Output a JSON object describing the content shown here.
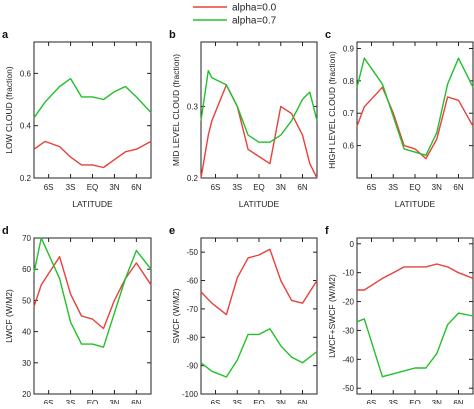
{
  "legend": {
    "items": [
      {
        "name": "alpha=0.0",
        "color": "#e8403a"
      },
      {
        "name": "alpha=0.7",
        "color": "#22c02a"
      }
    ]
  },
  "chart_data": [
    {
      "panel": "a",
      "type": "line",
      "xlabel": "LATITUDE",
      "ylabel": "LOW CLOUD (fraction)",
      "categories": [
        "6S",
        "3S",
        "EQ",
        "3N",
        "6N"
      ],
      "x": [
        -8,
        -6.5,
        -4.5,
        -3,
        -1.5,
        0,
        1.5,
        3,
        4.5,
        6,
        8
      ],
      "xlim": [
        -8,
        8
      ],
      "ylim": [
        0.2,
        0.72
      ],
      "yticks": [
        0.2,
        0.4,
        0.6
      ],
      "ytick_labels": [
        "0.2",
        "0.4",
        "0.6"
      ],
      "series": [
        {
          "name": "alpha=0.0",
          "values": [
            0.31,
            0.34,
            0.32,
            0.28,
            0.25,
            0.25,
            0.24,
            0.27,
            0.3,
            0.31,
            0.34
          ]
        },
        {
          "name": "alpha=0.7",
          "values": [
            0.43,
            0.49,
            0.55,
            0.58,
            0.51,
            0.51,
            0.5,
            0.53,
            0.55,
            0.51,
            0.45
          ]
        }
      ]
    },
    {
      "panel": "b",
      "type": "line",
      "xlabel": "LATITUDE",
      "ylabel": "MID LEVEL CLOUD (fraction)",
      "categories": [
        "6S",
        "3S",
        "EQ",
        "3N",
        "6N"
      ],
      "x": [
        -8,
        -7,
        -6.5,
        -4.5,
        -3,
        -1.5,
        0,
        1.5,
        3,
        4.5,
        6,
        7,
        8
      ],
      "xlim": [
        -8,
        8
      ],
      "ylim": [
        0.2,
        0.39
      ],
      "yticks": [
        0.2,
        0.3
      ],
      "ytick_labels": [
        "0.2",
        "0.3"
      ],
      "series": [
        {
          "name": "alpha=0.0",
          "values": [
            0.2,
            0.26,
            0.28,
            0.33,
            0.3,
            0.24,
            0.23,
            0.22,
            0.3,
            0.29,
            0.26,
            0.22,
            0.2
          ]
        },
        {
          "name": "alpha=0.7",
          "values": [
            0.28,
            0.35,
            0.34,
            0.33,
            0.3,
            0.26,
            0.25,
            0.25,
            0.26,
            0.28,
            0.31,
            0.32,
            0.28
          ]
        }
      ]
    },
    {
      "panel": "c",
      "type": "line",
      "xlabel": "LATITUDE",
      "ylabel": "HIGH LEVEL CLOUD (fraction)",
      "categories": [
        "6S",
        "3S",
        "EQ",
        "3N",
        "6N"
      ],
      "x": [
        -8,
        -7,
        -4.5,
        -3,
        -1.5,
        0,
        1.5,
        3,
        4.5,
        6,
        8
      ],
      "xlim": [
        -8,
        8
      ],
      "ylim": [
        0.5,
        0.92
      ],
      "yticks": [
        0.6,
        0.7,
        0.8,
        0.9
      ],
      "ytick_labels": [
        "0.6",
        "0.7",
        "0.8",
        "0.9"
      ],
      "series": [
        {
          "name": "alpha=0.0",
          "values": [
            0.66,
            0.72,
            0.78,
            0.7,
            0.6,
            0.59,
            0.56,
            0.62,
            0.75,
            0.74,
            0.66
          ]
        },
        {
          "name": "alpha=0.7",
          "values": [
            0.78,
            0.87,
            0.79,
            0.69,
            0.59,
            0.58,
            0.57,
            0.64,
            0.79,
            0.87,
            0.78
          ]
        }
      ]
    },
    {
      "panel": "d",
      "type": "line",
      "xlabel": "LATITUDE",
      "ylabel": "LWCF (W/M2)",
      "categories": [
        "6S",
        "3S",
        "EQ",
        "3N",
        "6N"
      ],
      "x": [
        -8,
        -7,
        -4.5,
        -3,
        -1.5,
        0,
        1.5,
        3,
        4.5,
        6,
        8
      ],
      "xlim": [
        -8,
        8
      ],
      "ylim": [
        20,
        70
      ],
      "yticks": [
        20,
        30,
        40,
        50,
        60,
        70
      ],
      "ytick_labels": [
        "20",
        "30",
        "40",
        "50",
        "60",
        "70"
      ],
      "series": [
        {
          "name": "alpha=0.0",
          "values": [
            48,
            55,
            64,
            52,
            45,
            44,
            41,
            50,
            57,
            62,
            55
          ]
        },
        {
          "name": "alpha=0.7",
          "values": [
            59,
            70,
            57,
            43,
            36,
            36,
            35,
            46,
            57,
            66,
            60
          ]
        }
      ]
    },
    {
      "panel": "e",
      "type": "line",
      "xlabel": "LATITUDE",
      "ylabel": "SWCF (W/M2)",
      "categories": [
        "6S",
        "3S",
        "EQ",
        "3N",
        "6N"
      ],
      "x": [
        -8,
        -6.5,
        -4.5,
        -3,
        -1.5,
        0,
        1.5,
        3,
        4.5,
        6,
        8
      ],
      "xlim": [
        -8,
        8
      ],
      "ylim": [
        -100,
        -45
      ],
      "yticks": [
        -100,
        -90,
        -80,
        -70,
        -60,
        -50
      ],
      "ytick_labels": [
        "-100",
        "-90",
        "-80",
        "-70",
        "-60",
        "-50"
      ],
      "series": [
        {
          "name": "alpha=0.0",
          "values": [
            -64,
            -68,
            -72,
            -59,
            -52,
            -51,
            -49,
            -60,
            -67,
            -68,
            -60
          ]
        },
        {
          "name": "alpha=0.7",
          "values": [
            -89,
            -92,
            -94,
            -88,
            -79,
            -79,
            -77,
            -83,
            -87,
            -89,
            -85
          ]
        }
      ]
    },
    {
      "panel": "f",
      "type": "line",
      "xlabel": "LATITUDE",
      "ylabel": "LWCF+SWCF (W/M2)",
      "categories": [
        "6S",
        "3S",
        "EQ",
        "3N",
        "6N"
      ],
      "x": [
        -8,
        -7,
        -4.5,
        -3,
        -1.5,
        0,
        1.5,
        3,
        4.5,
        6,
        8
      ],
      "xlim": [
        -8,
        8
      ],
      "ylim": [
        -52,
        2
      ],
      "yticks": [
        -50,
        -40,
        -30,
        -20,
        -10,
        0
      ],
      "ytick_labels": [
        "-50",
        "-40",
        "-30",
        "-20",
        "-10",
        "0"
      ],
      "series": [
        {
          "name": "alpha=0.0",
          "values": [
            -16,
            -16,
            -12,
            -10,
            -8,
            -8,
            -8,
            -7,
            -8,
            -10,
            -12
          ]
        },
        {
          "name": "alpha=0.7",
          "values": [
            -27,
            -26,
            -46,
            -45,
            -44,
            -43,
            -43,
            -38,
            -28,
            -24,
            -25
          ]
        }
      ]
    }
  ]
}
